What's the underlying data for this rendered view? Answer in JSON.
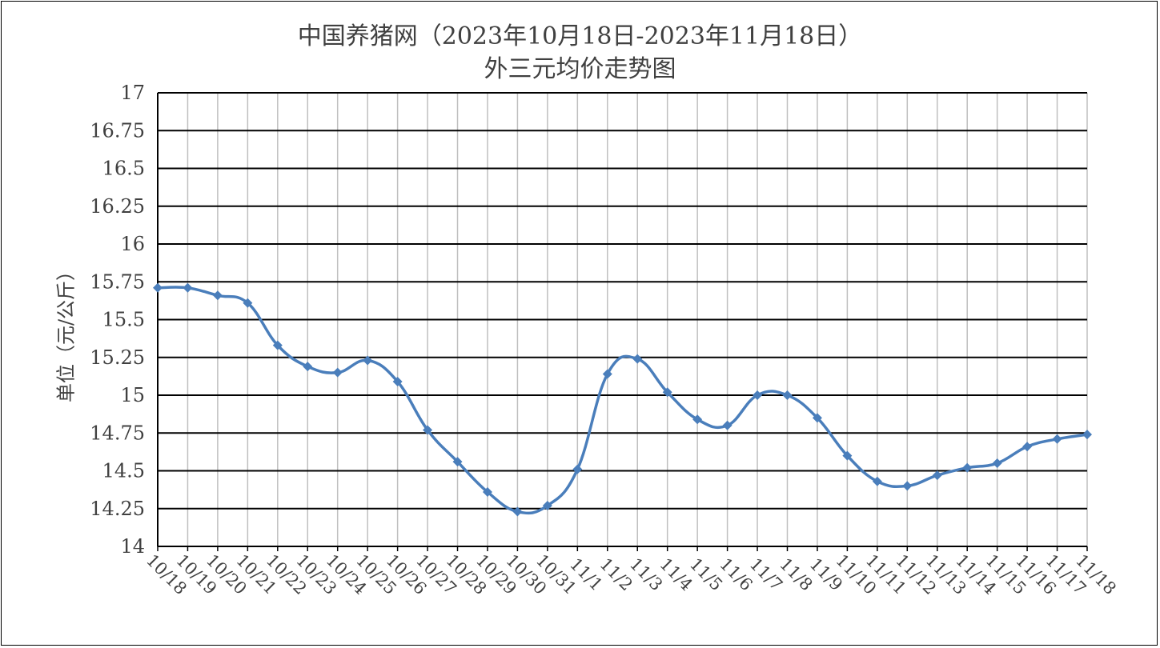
{
  "chart_data": {
    "type": "line",
    "title": "中国养猪网（2023年10月18日-2023年11月18日）",
    "subtitle": "外三元均价走势图",
    "ylabel": "单位（元/公斤）",
    "xlabel": "",
    "ylim": [
      14,
      17
    ],
    "y_ticks": [
      "14",
      "14.25",
      "14.5",
      "14.75",
      "15",
      "15.25",
      "15.5",
      "15.75",
      "16",
      "16.25",
      "16.5",
      "16.75",
      "17"
    ],
    "y_tick_values": [
      14,
      14.25,
      14.5,
      14.75,
      15,
      15.25,
      15.5,
      15.75,
      16,
      16.25,
      16.5,
      16.75,
      17
    ],
    "categories": [
      "10/18",
      "10/19",
      "10/20",
      "10/21",
      "10/22",
      "10/23",
      "10/24",
      "10/25",
      "10/26",
      "10/27",
      "10/28",
      "10/29",
      "10/30",
      "10/31",
      "11/1",
      "11/2",
      "11/3",
      "11/4",
      "11/5",
      "11/6",
      "11/7",
      "11/8",
      "11/9",
      "11/10",
      "11/11",
      "11/12",
      "11/13",
      "11/14",
      "11/15",
      "11/16",
      "11/17",
      "11/18"
    ],
    "values": [
      15.71,
      15.71,
      15.66,
      15.61,
      15.33,
      15.19,
      15.15,
      15.23,
      15.09,
      14.77,
      14.56,
      14.36,
      14.23,
      14.27,
      14.51,
      15.14,
      15.24,
      15.02,
      14.84,
      14.8,
      15.0,
      15.0,
      14.85,
      14.6,
      14.43,
      14.4,
      14.47,
      14.52,
      14.55,
      14.66,
      14.71,
      14.74
    ],
    "grid": true,
    "legend": "none",
    "series_color": "#4a7ebb"
  }
}
